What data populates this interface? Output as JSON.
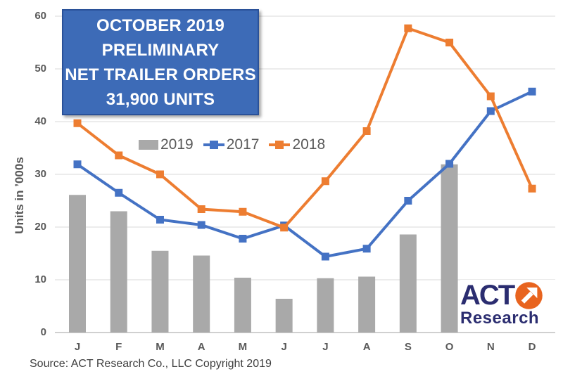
{
  "title_box": {
    "lines": [
      "OCTOBER 2019",
      "PRELIMINARY",
      "NET TRAILER ORDERS",
      "31,900 UNITS"
    ],
    "fill": "#3D6BB7",
    "border": "#2A5198",
    "text_color": "#FFFFFF"
  },
  "chart_data": {
    "type": "combo-bar-line",
    "categories": [
      "J",
      "F",
      "M",
      "A",
      "M",
      "J",
      "J",
      "A",
      "S",
      "O",
      "N",
      "D"
    ],
    "series": [
      {
        "name": "2019",
        "type": "bar",
        "color": "#A9A9A9",
        "values": [
          26.1,
          23.0,
          15.5,
          14.6,
          10.4,
          6.4,
          10.3,
          10.6,
          18.6,
          31.9,
          null,
          null
        ]
      },
      {
        "name": "2017",
        "type": "line",
        "color": "#4472C4",
        "values": [
          31.9,
          26.5,
          21.4,
          20.4,
          17.8,
          20.3,
          14.4,
          15.9,
          25.0,
          32.0,
          42.0,
          45.7
        ]
      },
      {
        "name": "2018",
        "type": "line",
        "color": "#ED7D31",
        "values": [
          39.7,
          33.6,
          30.0,
          23.4,
          22.9,
          19.9,
          28.7,
          38.2,
          57.7,
          55.0,
          44.8,
          27.3
        ]
      }
    ],
    "title": "October 2019 Preliminary Net Trailer Orders 31,900 Units",
    "xlabel": "",
    "ylabel": "Units in ’000s",
    "ylim": [
      0,
      60
    ],
    "ytick_step": 10,
    "grid": true,
    "grid_color": "#D9D9D9",
    "axis_line_color": "#C0C0C0",
    "tick_label_color": "#595959",
    "legend_position": "top-center"
  },
  "legend": {
    "items": [
      {
        "label": "2019",
        "swatch": "bar-swatch-icon"
      },
      {
        "label": "2017",
        "swatch": "line-swatch-icon"
      },
      {
        "label": "2018",
        "swatch": "line-swatch-icon"
      }
    ]
  },
  "logo": {
    "act": "ACT",
    "research": "Research",
    "navy": "#2B2D70",
    "orange": "#E8641F",
    "arrow_icon": "northeast-arrow"
  },
  "footer": {
    "source_text": "Source: ACT Research Co., LLC  Copyright 2019"
  }
}
